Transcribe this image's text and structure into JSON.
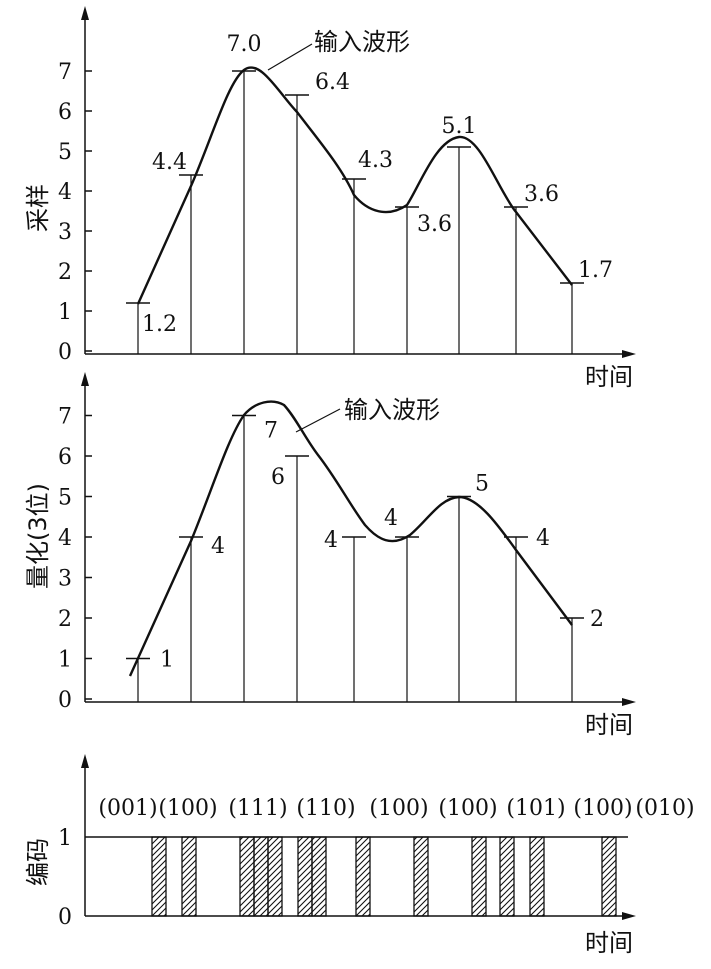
{
  "wave_label": "输入波形",
  "time_label": "时间",
  "panel_sample": {
    "ylabel": "采样",
    "ticks": [
      "0",
      "1",
      "2",
      "3",
      "4",
      "5",
      "6",
      "7"
    ],
    "values": [
      1.2,
      4.4,
      7.0,
      6.4,
      4.3,
      3.6,
      5.1,
      3.6,
      1.7
    ],
    "labels": [
      "1.2",
      "4.4",
      "7.0",
      "6.4",
      "4.3",
      "3.6",
      "5.1",
      "3.6",
      "1.7"
    ]
  },
  "panel_quant": {
    "ylabel": "量化(3位)",
    "ticks": [
      "0",
      "1",
      "2",
      "3",
      "4",
      "5",
      "6",
      "7"
    ],
    "values": [
      1,
      4,
      7,
      6,
      4,
      4,
      5,
      4,
      2
    ],
    "labels": [
      "1",
      "4",
      "7",
      "6",
      "4",
      "4",
      "5",
      "4",
      "2"
    ]
  },
  "panel_code": {
    "ylabel": "编码",
    "ticks": [
      "0",
      "1"
    ],
    "codes": [
      "(001)",
      "(100)",
      "(111)",
      "(110)",
      "(100)",
      "(100)",
      "(101)",
      "(100)",
      "(010)"
    ]
  }
}
